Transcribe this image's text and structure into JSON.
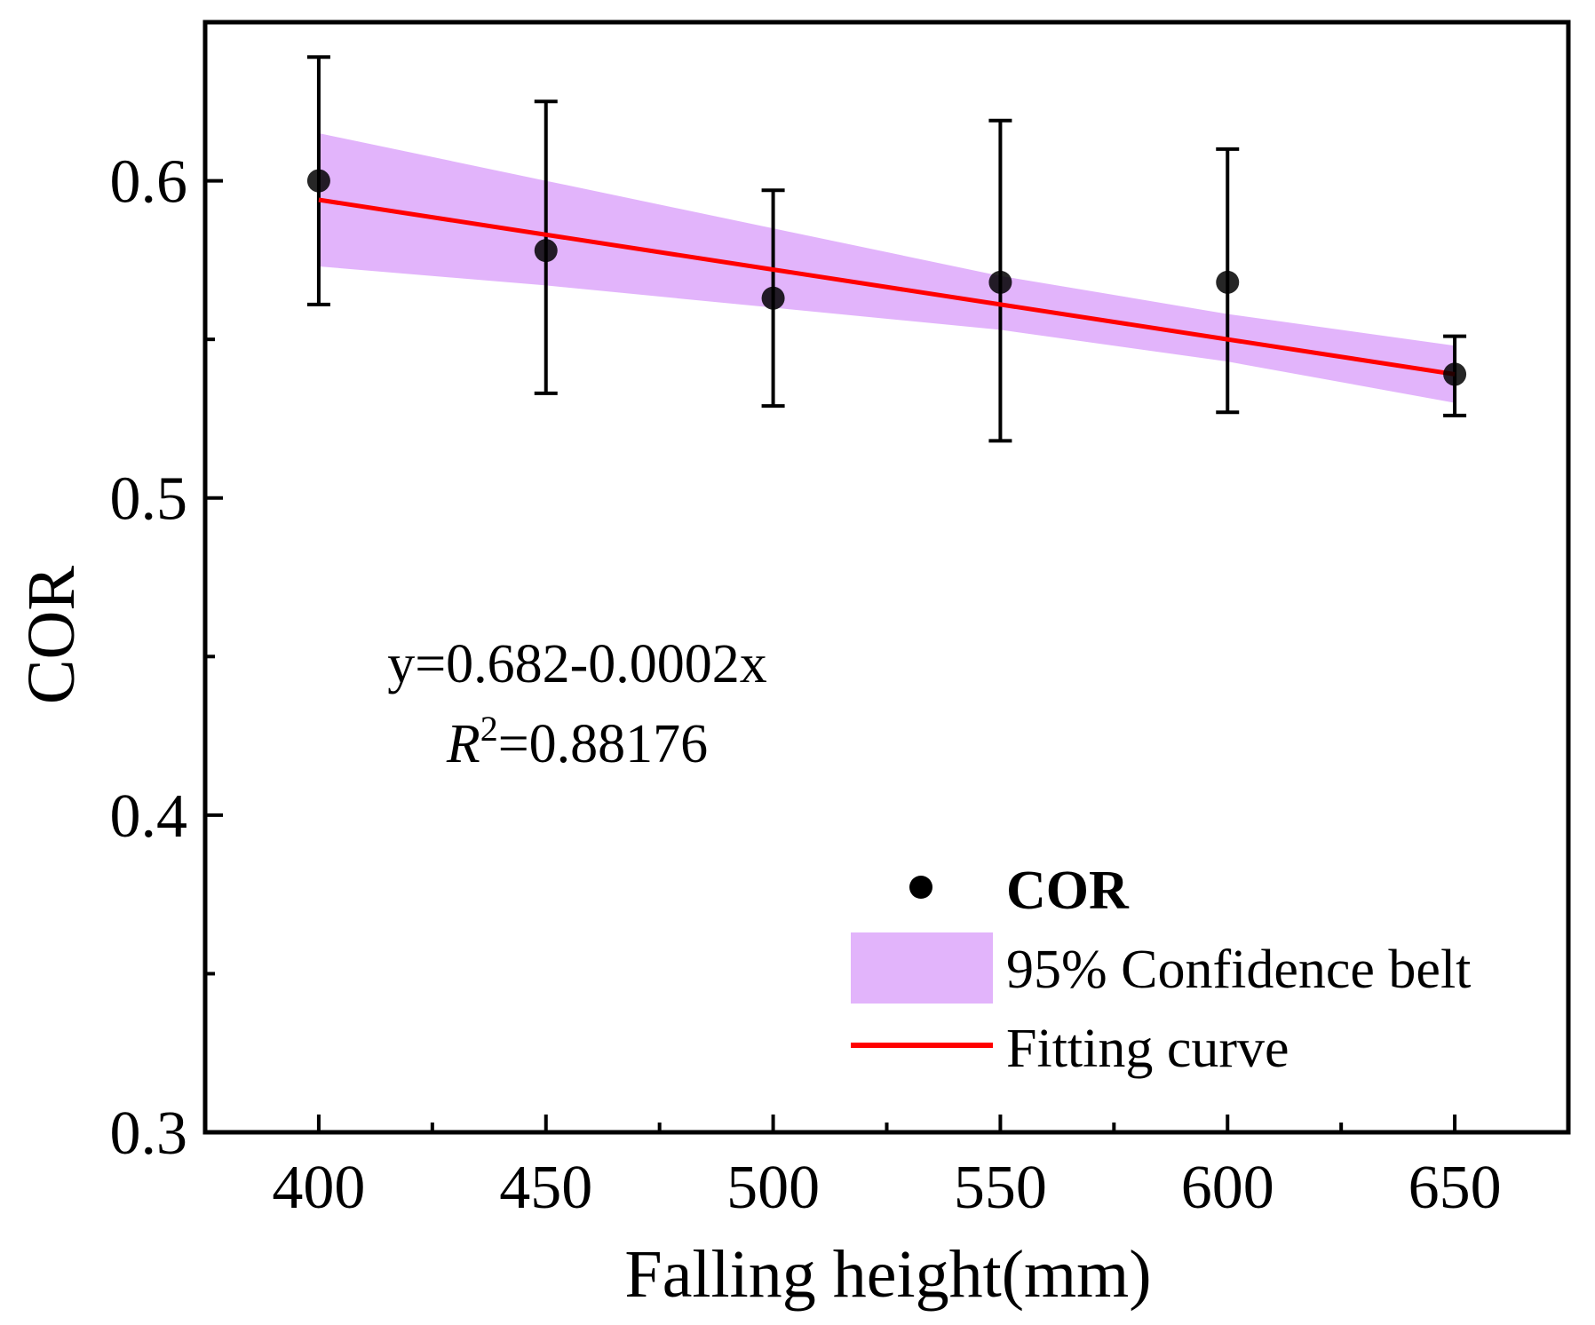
{
  "chart_data": {
    "type": "scatter",
    "title": "",
    "xlabel": "Falling height(mm)",
    "ylabel": "COR",
    "xlim": [
      375,
      675
    ],
    "ylim": [
      0.3,
      0.65
    ],
    "x_ticks": [
      400,
      450,
      500,
      550,
      600,
      650
    ],
    "x_minor_ticks": [
      425,
      475,
      525,
      575,
      625
    ],
    "x_tick_labels": [
      "400",
      "450",
      "500",
      "550",
      "600",
      "650"
    ],
    "y_ticks": [
      0.3,
      0.4,
      0.5,
      0.6
    ],
    "y_minor_ticks": [
      0.35,
      0.45,
      0.55
    ],
    "y_tick_labels": [
      "0.3",
      "0.4",
      "0.5",
      "0.6"
    ],
    "grid": false,
    "legend_position": "bottom-right",
    "series": [
      {
        "name": "COR",
        "kind": "points_with_error_bars",
        "color": "#000000",
        "x": [
          400,
          450,
          500,
          550,
          600,
          650
        ],
        "y": [
          0.6,
          0.578,
          0.563,
          0.568,
          0.568,
          0.539
        ],
        "err_low": [
          0.561,
          0.533,
          0.529,
          0.518,
          0.527,
          0.526
        ],
        "err_high": [
          0.639,
          0.625,
          0.597,
          0.619,
          0.61,
          0.551
        ]
      },
      {
        "name": "95% Confidence belt",
        "kind": "band",
        "color": "#e2b4fb",
        "x": [
          400,
          450,
          500,
          550,
          600,
          650
        ],
        "lower": [
          0.573,
          0.567,
          0.56,
          0.553,
          0.543,
          0.53
        ],
        "upper": [
          0.615,
          0.6,
          0.585,
          0.57,
          0.558,
          0.548
        ]
      },
      {
        "name": "Fitting curve",
        "kind": "line",
        "color": "#ff0000",
        "x": [
          400,
          650
        ],
        "y": [
          0.594,
          0.539
        ]
      }
    ],
    "annotations": {
      "equation": "y=0.682-0.0002x",
      "r2_symbol": "R",
      "r2_exp": "2",
      "r2_value": "=0.88176"
    },
    "legend": {
      "cor_label": "COR",
      "band_label": "95% Confidence belt",
      "line_label": "Fitting curve"
    }
  }
}
